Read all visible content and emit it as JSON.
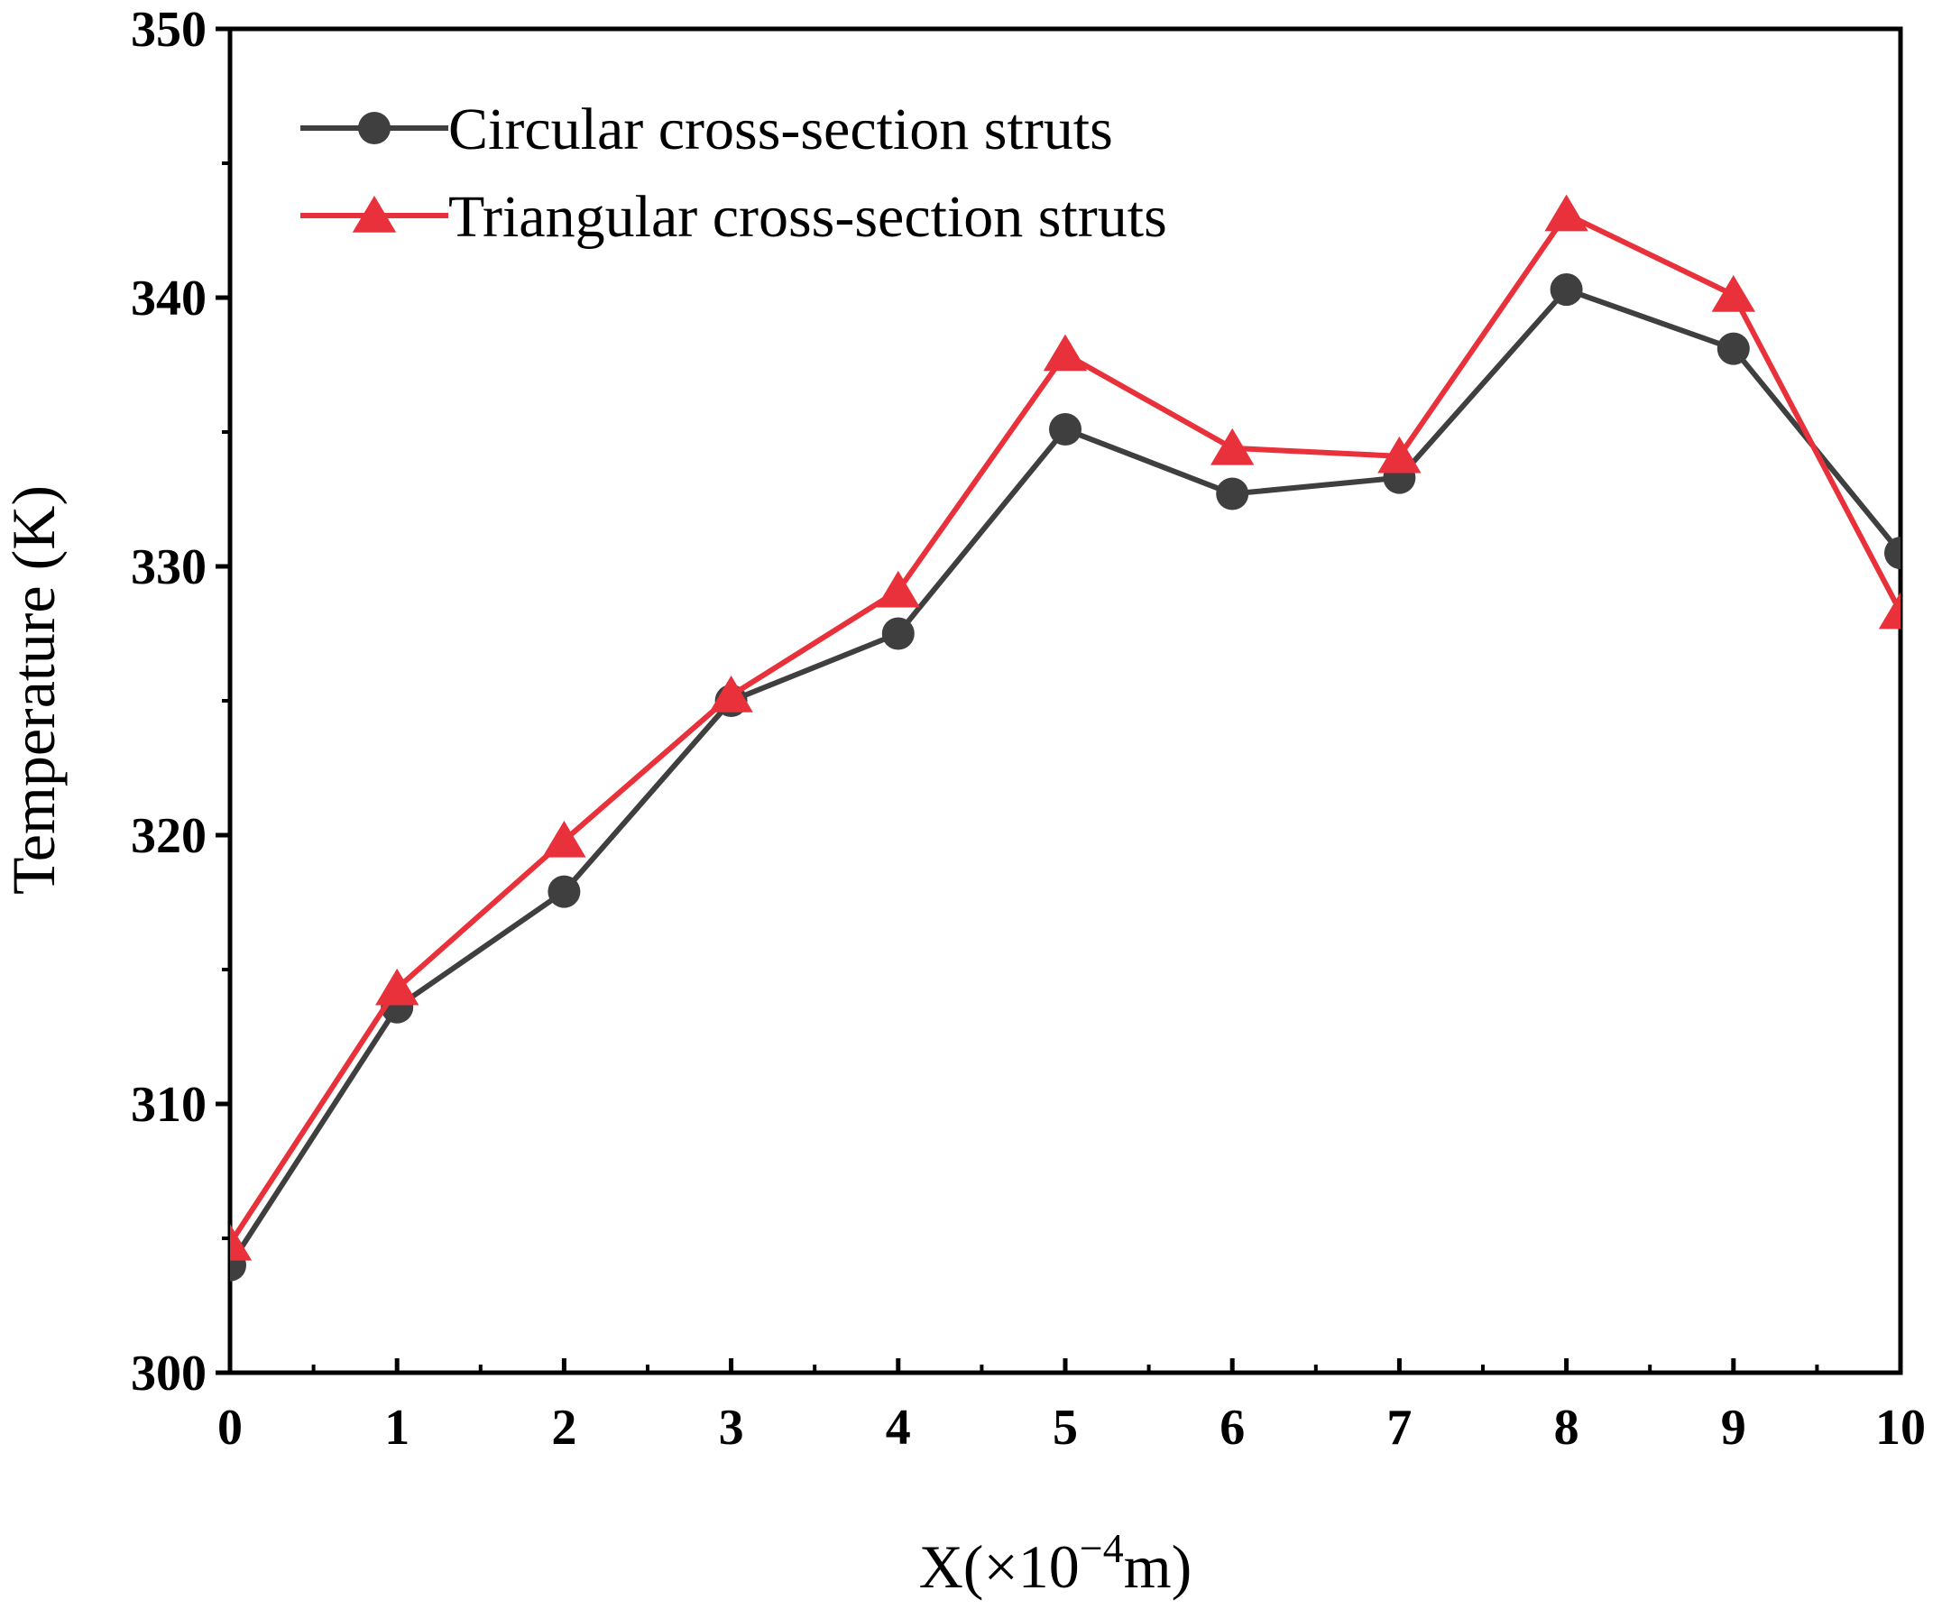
{
  "chart_data": {
    "type": "line",
    "title": "",
    "xlabel": "X(×10",
    "xlabel_sup": "−4",
    "xlabel_suffix": "m)",
    "ylabel": "Temperature (K)",
    "xlim": [
      0,
      10
    ],
    "ylim": [
      300,
      350
    ],
    "xticks": [
      0,
      1,
      2,
      3,
      4,
      5,
      6,
      7,
      8,
      9,
      10
    ],
    "yticks": [
      300,
      310,
      320,
      330,
      340,
      350
    ],
    "grid": false,
    "legend_position": "top-left",
    "x": [
      0,
      1,
      2,
      3,
      4,
      5,
      6,
      7,
      8,
      9,
      10
    ],
    "series": [
      {
        "name": "Circular cross-section struts",
        "marker": "circle",
        "color": "#3f3f3f",
        "values": [
          304.0,
          313.6,
          317.9,
          325.0,
          327.5,
          335.1,
          332.7,
          333.3,
          340.3,
          338.1,
          330.5
        ]
      },
      {
        "name": "Triangular cross-section struts",
        "marker": "triangle",
        "color": "#e8313a",
        "values": [
          304.8,
          314.3,
          319.8,
          325.2,
          329.1,
          337.9,
          334.4,
          334.1,
          343.1,
          340.1,
          328.3
        ]
      }
    ]
  }
}
